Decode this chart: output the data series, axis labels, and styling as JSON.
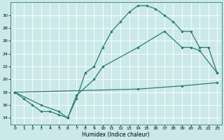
{
  "xlabel": "Humidex (Indice chaleur)",
  "bg_color": "#cce9e9",
  "grid_color": "#ffffff",
  "line_color": "#2d7a7a",
  "xlim": [
    -0.5,
    23.5
  ],
  "ylim": [
    13.0,
    32.0
  ],
  "xticks": [
    0,
    1,
    2,
    3,
    4,
    5,
    6,
    7,
    8,
    9,
    10,
    11,
    12,
    13,
    14,
    15,
    16,
    17,
    18,
    19,
    20,
    21,
    22,
    23
  ],
  "yticks": [
    14,
    16,
    18,
    20,
    22,
    24,
    26,
    28,
    30
  ],
  "line1_x": [
    0,
    1,
    2,
    3,
    4,
    5,
    6,
    7,
    8,
    9,
    10,
    11,
    12,
    13,
    14,
    15,
    16,
    17,
    18,
    19,
    20,
    21,
    22,
    23
  ],
  "line1_y": [
    18,
    17,
    16,
    15,
    15,
    14.5,
    14,
    17,
    21,
    22,
    25,
    27.5,
    29,
    30.5,
    31.5,
    31.5,
    31,
    30,
    29,
    27.5,
    27.5,
    25,
    25,
    21
  ],
  "line2_x": [
    0,
    3,
    5,
    6,
    7,
    9,
    10,
    14,
    17,
    19,
    20,
    21,
    23
  ],
  "line2_y": [
    18,
    16,
    15,
    14,
    17.5,
    20,
    22,
    25,
    27.5,
    25,
    25,
    24.5,
    21
  ],
  "line3_x": [
    0,
    14,
    19,
    23
  ],
  "line3_y": [
    18,
    18.5,
    19,
    19.5
  ]
}
